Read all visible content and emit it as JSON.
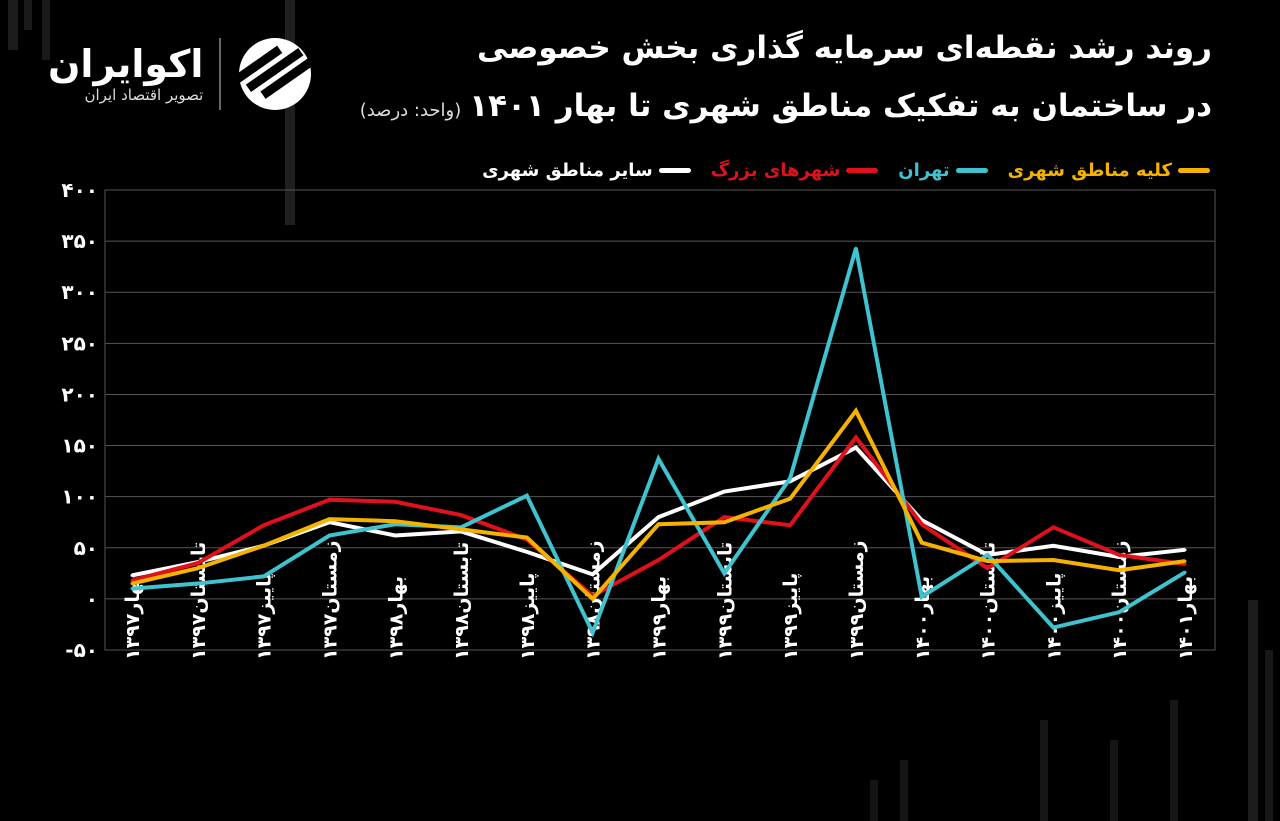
{
  "brand": {
    "name": "اکوایران",
    "tagline": "تصویر اقتصاد ایران"
  },
  "colors": {
    "background": "#000000",
    "grid": "#555555"
  },
  "chart_data": {
    "type": "line",
    "title": "روند رشد نقطه‌ای سرمایه گذاری بخش خصوصی",
    "subtitle": "در ساختمان به تفکیک مناطق شهری تا بهار ۱۴۰۱",
    "unit_note": "(واحد: درصد)",
    "ylim": [
      -50,
      400
    ],
    "yticks": [
      400,
      350,
      300,
      250,
      200,
      150,
      100,
      50,
      0,
      -50
    ],
    "ytick_labels": [
      "۴۰۰",
      "۳۵۰",
      "۳۰۰",
      "۲۵۰",
      "۲۰۰",
      "۱۵۰",
      "۱۰۰",
      "۵۰",
      "۰",
      "-۵۰"
    ],
    "grid": true,
    "legend_position": "top-right",
    "categories": [
      "بهار۱۳۹۷",
      "تابستان۱۳۹۷",
      "پاییز۱۳۹۷",
      "زمستان۱۳۹۷",
      "بهار۱۳۹۸",
      "تابستان۱۳۹۸",
      "پاییز۱۳۹۸",
      "زمستان۱۳۹۸",
      "بهار۱۳۹۹",
      "تابستان۱۳۹۹",
      "پاییز۱۳۹۹",
      "زمستان۱۳۹۹",
      "بهار۱۴۰۰",
      "تابستان۱۴۰۰",
      "پاییز۱۴۰۰",
      "زمستان۱۴۰۰",
      "بهار۱۴۰۱"
    ],
    "series": [
      {
        "name": "سایر مناطق شهری",
        "color": "#ffffff",
        "values": [
          23,
          36,
          52,
          75,
          62,
          66,
          46,
          24,
          80,
          105,
          115,
          148,
          77,
          43,
          52,
          41,
          48
        ]
      },
      {
        "name": "شهرهای بزرگ",
        "color": "#e0111b",
        "values": [
          18,
          35,
          72,
          97,
          95,
          82,
          58,
          3,
          38,
          80,
          72,
          158,
          73,
          30,
          70,
          43,
          34
        ]
      },
      {
        "name": "تهران",
        "color": "#3ec3cf",
        "values": [
          10,
          15,
          22,
          62,
          73,
          70,
          101,
          -33,
          137,
          25,
          118,
          343,
          2,
          43,
          -28,
          -13,
          26
        ]
      },
      {
        "name": "کلیه مناطق شهری",
        "color": "#f5b300",
        "values": [
          15,
          30,
          52,
          78,
          76,
          68,
          60,
          0,
          73,
          75,
          98,
          184,
          55,
          37,
          38,
          28,
          37
        ]
      }
    ]
  }
}
